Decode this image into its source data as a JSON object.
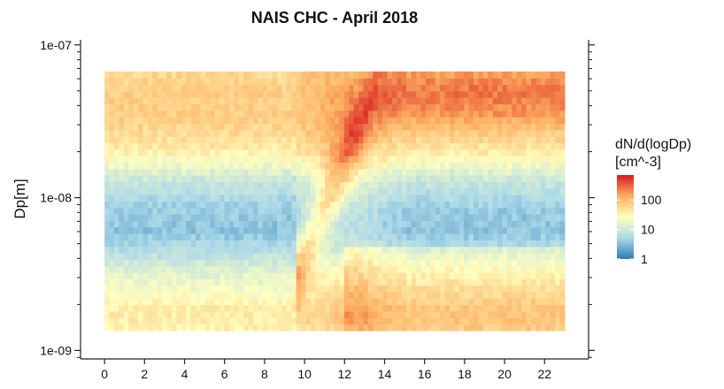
{
  "chart_data": {
    "type": "heatmap",
    "title": "NAIS CHC - April 2018",
    "xlabel": "",
    "ylabel": "Dp[m]",
    "x_ticks": [
      "0",
      "2",
      "4",
      "6",
      "8",
      "10",
      "12",
      "14",
      "16",
      "18",
      "20",
      "22"
    ],
    "x_tick_values": [
      0,
      2,
      4,
      6,
      8,
      10,
      12,
      14,
      16,
      18,
      20,
      22
    ],
    "xlim": [
      -1.2,
      24.2
    ],
    "y_scale": "log",
    "y_ticks": [
      "1e-07",
      "1e-08",
      "1e-09"
    ],
    "y_tick_values": [
      1e-07,
      1e-08,
      1e-09
    ],
    "ylim": [
      8.8e-10,
      1.08e-07
    ],
    "x_data_range": [
      0,
      23
    ],
    "y_data_range": [
      1.35e-09,
      6.7e-08
    ],
    "colorbar": {
      "title_lines": [
        "dN/d(logDp)",
        "[cm^-3]"
      ],
      "scale": "log",
      "tick_labels": [
        "100",
        "10",
        "1"
      ],
      "tick_values": [
        100,
        10,
        1
      ],
      "range": [
        1,
        700
      ],
      "colors": [
        "#2c7bb6",
        "#abd9e9",
        "#ffffbf",
        "#fdae61",
        "#d7191c"
      ]
    },
    "z_profile_log10": [
      {
        "dp": 1.35e-09,
        "z": 1.5
      },
      {
        "dp": 1.6e-09,
        "z": 1.6
      },
      {
        "dp": 1.9e-09,
        "z": 1.55
      },
      {
        "dp": 2.2e-09,
        "z": 1.45
      },
      {
        "dp": 2.7e-09,
        "z": 1.3
      },
      {
        "dp": 3.3e-09,
        "z": 1.15
      },
      {
        "dp": 4.5e-09,
        "z": 0.8
      },
      {
        "dp": 6e-09,
        "z": 0.55
      },
      {
        "dp": 8e-09,
        "z": 0.6
      },
      {
        "dp": 1e-08,
        "z": 0.75
      },
      {
        "dp": 1.3e-08,
        "z": 0.95
      },
      {
        "dp": 1.6e-08,
        "z": 1.25
      },
      {
        "dp": 2e-08,
        "z": 1.55
      },
      {
        "dp": 2.7e-08,
        "z": 1.75
      },
      {
        "dp": 3.5e-08,
        "z": 1.85
      },
      {
        "dp": 5e-08,
        "z": 1.85
      },
      {
        "dp": 6.7e-08,
        "z": 1.75
      }
    ],
    "new_particle_formation_event": {
      "start_hour": 9.5,
      "peak_hour": 12,
      "start_dp": 3e-09,
      "end_dp": 5e-08
    }
  }
}
